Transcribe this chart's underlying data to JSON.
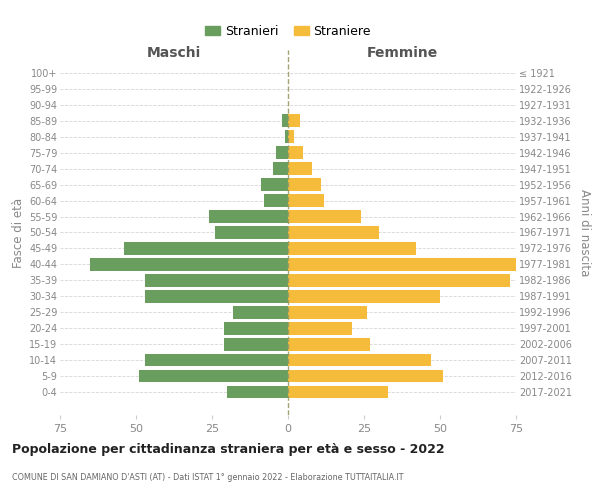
{
  "age_groups": [
    "100+",
    "95-99",
    "90-94",
    "85-89",
    "80-84",
    "75-79",
    "70-74",
    "65-69",
    "60-64",
    "55-59",
    "50-54",
    "45-49",
    "40-44",
    "35-39",
    "30-34",
    "25-29",
    "20-24",
    "15-19",
    "10-14",
    "5-9",
    "0-4"
  ],
  "birth_years": [
    "≤ 1921",
    "1922-1926",
    "1927-1931",
    "1932-1936",
    "1937-1941",
    "1942-1946",
    "1947-1951",
    "1952-1956",
    "1957-1961",
    "1962-1966",
    "1967-1971",
    "1972-1976",
    "1977-1981",
    "1982-1986",
    "1987-1991",
    "1992-1996",
    "1997-2001",
    "2002-2006",
    "2007-2011",
    "2012-2016",
    "2017-2021"
  ],
  "maschi": [
    0,
    0,
    0,
    2,
    1,
    4,
    5,
    9,
    8,
    26,
    24,
    54,
    65,
    47,
    47,
    18,
    21,
    21,
    47,
    49,
    20
  ],
  "femmine": [
    0,
    0,
    0,
    4,
    2,
    5,
    8,
    11,
    12,
    24,
    30,
    42,
    75,
    73,
    50,
    26,
    21,
    27,
    47,
    51,
    33
  ],
  "color_maschi": "#6a9e5f",
  "color_femmine": "#f5bb3b",
  "title": "Popolazione per cittadinanza straniera per età e sesso - 2022",
  "subtitle": "COMUNE DI SAN DAMIANO D'ASTI (AT) - Dati ISTAT 1° gennaio 2022 - Elaborazione TUTTAITALIA.IT",
  "xlabel_left": "Maschi",
  "xlabel_right": "Femmine",
  "ylabel_left": "Fasce di età",
  "ylabel_right": "Anni di nascita",
  "legend_stranieri": "Stranieri",
  "legend_straniere": "Straniere",
  "xlim": 75,
  "background_color": "#ffffff",
  "grid_color": "#cccccc"
}
